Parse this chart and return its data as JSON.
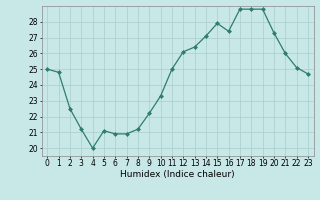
{
  "x": [
    0,
    1,
    2,
    3,
    4,
    5,
    6,
    7,
    8,
    9,
    10,
    11,
    12,
    13,
    14,
    15,
    16,
    17,
    18,
    19,
    20,
    21,
    22,
    23
  ],
  "y": [
    25.0,
    24.8,
    22.5,
    21.2,
    20.0,
    21.1,
    20.9,
    20.9,
    21.2,
    22.2,
    23.3,
    25.0,
    26.1,
    26.4,
    27.1,
    27.9,
    27.4,
    28.8,
    28.8,
    28.8,
    27.3,
    26.0,
    25.1,
    24.7
  ],
  "line_color": "#2E7D6E",
  "marker": "D",
  "marker_size": 2.0,
  "bg_color": "#C8E8E8",
  "grid_color": "#AACCCC",
  "xlabel": "Humidex (Indice chaleur)",
  "ylim": [
    19.5,
    29.0
  ],
  "yticks": [
    20,
    21,
    22,
    23,
    24,
    25,
    26,
    27,
    28
  ],
  "xticks": [
    0,
    1,
    2,
    3,
    4,
    5,
    6,
    7,
    8,
    9,
    10,
    11,
    12,
    13,
    14,
    15,
    16,
    17,
    18,
    19,
    20,
    21,
    22,
    23
  ],
  "label_fontsize": 6.5,
  "tick_fontsize": 5.5
}
